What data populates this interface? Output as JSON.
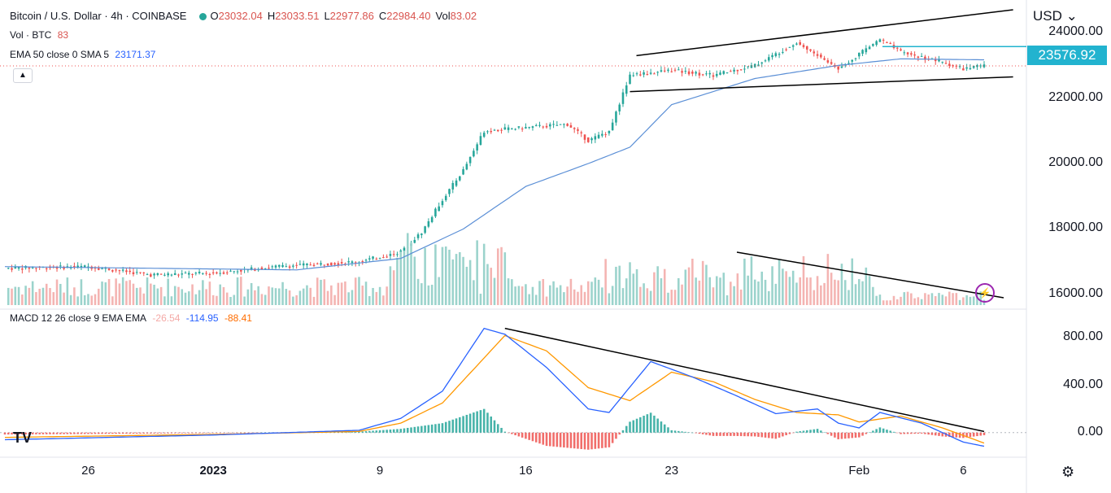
{
  "header": {
    "symbol_title": "Bitcoin / U.S. Dollar · 4h · COINBASE",
    "ohlc": [
      {
        "k": "O",
        "v": "23032.04"
      },
      {
        "k": "H",
        "v": "23033.51"
      },
      {
        "k": "L",
        "v": "22977.86"
      },
      {
        "k": "C",
        "v": "22984.40"
      },
      {
        "k": "Vol",
        "v": "83.02"
      }
    ],
    "vol_label": "Vol · BTC",
    "vol_value": "83",
    "ema_label": "EMA 50 close 0 SMA 5",
    "ema_value": "23171.37",
    "macd_label": "MACD 12 26 close 9 EMA EMA",
    "macd_values": [
      "-26.54",
      "-114.95",
      "-88.41"
    ],
    "currency": "USD",
    "current_price_tag": "23576.92",
    "collapse_icon": "chevron-up-icon",
    "settings_icon": "gear-icon",
    "logo_icon": "tradingview-logo"
  },
  "colors": {
    "up": "#26a69a",
    "down": "#ef5350",
    "ema": "#5b8fd6",
    "macd": "#2962ff",
    "signal": "#ff9800",
    "price_tag": "#22b3cf",
    "trendline": "#000000"
  },
  "chart_data": [
    {
      "type": "candlestick",
      "title": "",
      "y_ticks": [
        "24000.00",
        "22000.00",
        "20000.00",
        "18000.00",
        "16000.00"
      ],
      "ylim": [
        15600,
        24800
      ],
      "x_ticks": [
        "26",
        "2023",
        "9",
        "16",
        "23",
        "Feb",
        "6"
      ],
      "close_path": [
        [
          "Dec 22",
          16800
        ],
        [
          "Dec 26",
          16850
        ],
        [
          "Dec 29",
          16600
        ],
        [
          "Jan 1",
          16650
        ],
        [
          "Jan 4",
          16850
        ],
        [
          "Jan 8",
          17000
        ],
        [
          "Jan 10",
          17300
        ],
        [
          "Jan 11",
          17900
        ],
        [
          "Jan 12",
          18900
        ],
        [
          "Jan 13",
          19800
        ],
        [
          "Jan 14",
          21000
        ],
        [
          "Jan 16",
          21100
        ],
        [
          "Jan 18",
          21200
        ],
        [
          "Jan 19",
          20700
        ],
        [
          "Jan 20",
          21000
        ],
        [
          "Jan 21",
          22700
        ],
        [
          "Jan 23",
          22850
        ],
        [
          "Jan 25",
          22700
        ],
        [
          "Jan 27",
          23000
        ],
        [
          "Jan 29",
          23700
        ],
        [
          "Jan 31",
          22900
        ],
        [
          "Feb 2",
          23800
        ],
        [
          "Feb 3",
          23400
        ],
        [
          "Feb 5",
          23100
        ],
        [
          "Feb 6",
          22900
        ],
        [
          "Feb 7",
          22984
        ]
      ],
      "ema50_path": [
        [
          "Dec 22",
          16850
        ],
        [
          "Jan 5",
          16750
        ],
        [
          "Jan 10",
          17100
        ],
        [
          "Jan 13",
          18000
        ],
        [
          "Jan 16",
          19300
        ],
        [
          "Jan 19",
          20000
        ],
        [
          "Jan 21",
          20500
        ],
        [
          "Jan 23",
          21800
        ],
        [
          "Jan 27",
          22600
        ],
        [
          "Jan 31",
          23000
        ],
        [
          "Feb 3",
          23200
        ],
        [
          "Feb 7",
          23171
        ]
      ],
      "channel_upper": [
        [
          "Jan 21",
          23300
        ],
        [
          "Feb 8",
          24700
        ]
      ],
      "channel_lower": [
        [
          "Jan 21",
          22200
        ],
        [
          "Feb 8",
          22650
        ]
      ],
      "last_price_line": 23576.92
    },
    {
      "type": "bar",
      "title": "Vol · BTC",
      "volume_trendline": "descending from Jan 26 high to Feb 8"
    },
    {
      "type": "line",
      "title": "MACD 12 26 close 9 EMA EMA",
      "y_ticks": [
        "800.00",
        "400.00",
        "0.00"
      ],
      "ylim": [
        -180,
        960
      ],
      "series": [
        {
          "name": "MACD",
          "points": [
            [
              "Dec 22",
              -60
            ],
            [
              "Jan 1",
              -20
            ],
            [
              "Jan 8",
              20
            ],
            [
              "Jan 10",
              120
            ],
            [
              "Jan 12",
              350
            ],
            [
              "Jan 14",
              880
            ],
            [
              "Jan 15",
              830
            ],
            [
              "Jan 17",
              550
            ],
            [
              "Jan 19",
              200
            ],
            [
              "Jan 20",
              170
            ],
            [
              "Jan 22",
              600
            ],
            [
              "Jan 24",
              470
            ],
            [
              "Jan 26",
              320
            ],
            [
              "Jan 28",
              160
            ],
            [
              "Jan 30",
              200
            ],
            [
              "Jan 31",
              80
            ],
            [
              "Feb 1",
              40
            ],
            [
              "Feb 2",
              170
            ],
            [
              "Feb 4",
              80
            ],
            [
              "Feb 6",
              -80
            ],
            [
              "Feb 7",
              -115
            ]
          ]
        },
        {
          "name": "Signal",
          "points": [
            [
              "Dec 22",
              -40
            ],
            [
              "Jan 1",
              -15
            ],
            [
              "Jan 8",
              10
            ],
            [
              "Jan 10",
              80
            ],
            [
              "Jan 12",
              250
            ],
            [
              "Jan 15",
              820
            ],
            [
              "Jan 17",
              690
            ],
            [
              "Jan 19",
              380
            ],
            [
              "Jan 21",
              270
            ],
            [
              "Jan 23",
              510
            ],
            [
              "Jan 25",
              430
            ],
            [
              "Jan 27",
              280
            ],
            [
              "Jan 29",
              170
            ],
            [
              "Jan 31",
              150
            ],
            [
              "Feb 1",
              90
            ],
            [
              "Feb 3",
              140
            ],
            [
              "Feb 5",
              40
            ],
            [
              "Feb 7",
              -88
            ]
          ]
        }
      ],
      "trendline": [
        [
          "Jan 15",
          880
        ],
        [
          "Feb 7",
          10
        ]
      ]
    }
  ]
}
